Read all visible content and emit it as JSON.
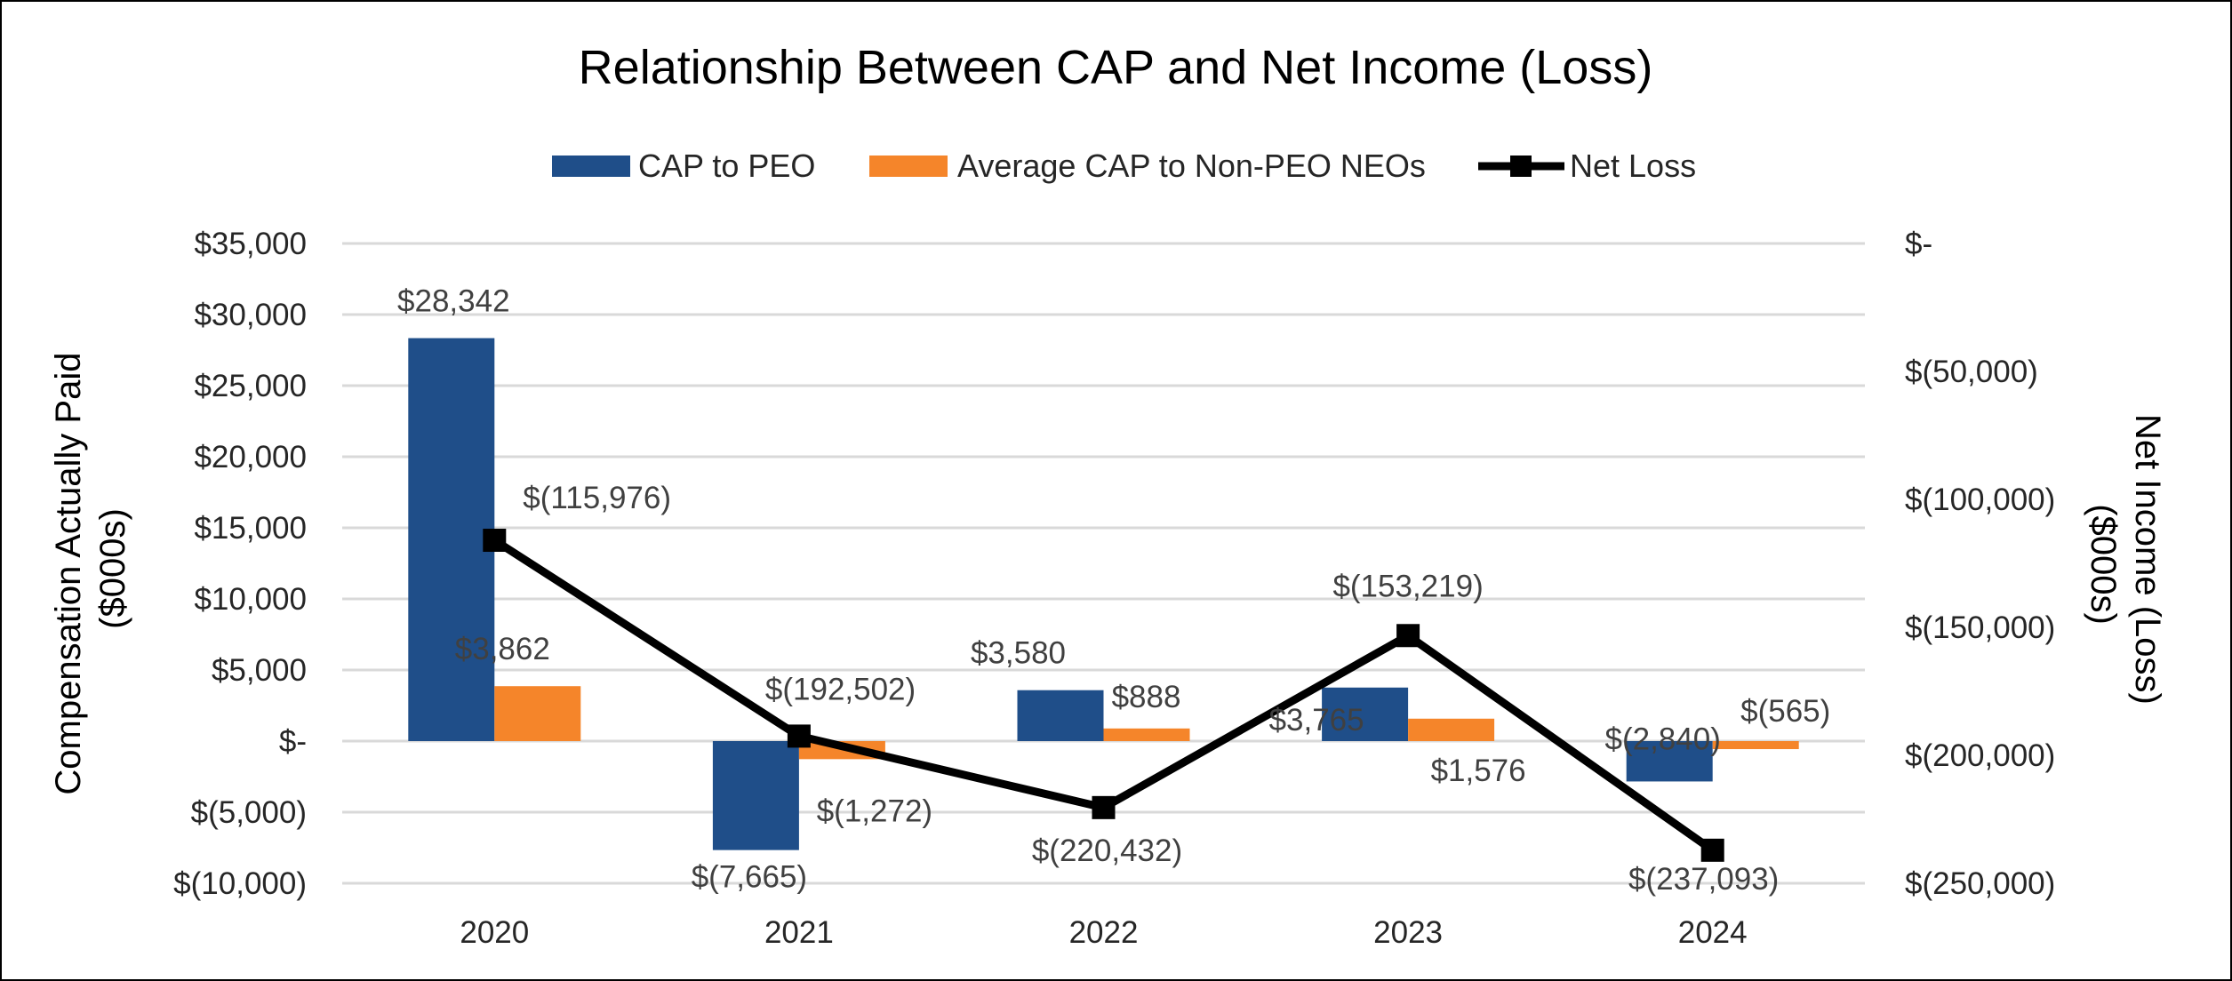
{
  "chart_data": {
    "type": "bar",
    "title": "Relationship Between CAP and Net Income (Loss)",
    "categories": [
      "2020",
      "2021",
      "2022",
      "2023",
      "2024"
    ],
    "ylabel_left": [
      "Compensation Actually Paid",
      "($000s)"
    ],
    "ylabel_right": [
      "Net Income (Loss)",
      "($000s)"
    ],
    "ylim_left": [
      -10000,
      35000
    ],
    "ylim_right": [
      -250000,
      0
    ],
    "left_ticks": [
      {
        "value": 35000,
        "label": "$35,000"
      },
      {
        "value": 30000,
        "label": "$30,000"
      },
      {
        "value": 25000,
        "label": "$25,000"
      },
      {
        "value": 20000,
        "label": "$20,000"
      },
      {
        "value": 15000,
        "label": "$15,000"
      },
      {
        "value": 10000,
        "label": "$10,000"
      },
      {
        "value": 5000,
        "label": "$5,000"
      },
      {
        "value": 0,
        "label": "$-"
      },
      {
        "value": -5000,
        "label": "$(5,000)"
      },
      {
        "value": -10000,
        "label": "$(10,000)"
      }
    ],
    "right_ticks": [
      {
        "value": 0,
        "label": "$-"
      },
      {
        "value": -50000,
        "label": "$(50,000)"
      },
      {
        "value": -100000,
        "label": "$(100,000)"
      },
      {
        "value": -150000,
        "label": "$(150,000)"
      },
      {
        "value": -200000,
        "label": "$(200,000)"
      },
      {
        "value": -250000,
        "label": "$(250,000)"
      }
    ],
    "grid": true,
    "legend_position": "top-center",
    "series": [
      {
        "name": "CAP to PEO",
        "kind": "bar",
        "axis": "left",
        "color": "#1f4e89",
        "values": [
          28342,
          -7665,
          3580,
          3765,
          -2840
        ],
        "labels": [
          "$28,342",
          "$(7,665)",
          "$3,580",
          "$3,765",
          "$(2,840)"
        ]
      },
      {
        "name": "Average CAP to Non-PEO NEOs",
        "kind": "bar",
        "axis": "left",
        "color": "#f5852a",
        "values": [
          3862,
          -1272,
          888,
          1576,
          -565
        ],
        "labels": [
          "$3,862",
          "$(1,272)",
          "$888",
          "$1,576",
          "$(565)"
        ]
      },
      {
        "name": "Net Loss",
        "kind": "line",
        "axis": "right",
        "color": "#000000",
        "values": [
          -115976,
          -192502,
          -220432,
          -153219,
          -237093
        ],
        "labels": [
          "$(115,976)",
          "$(192,502)",
          "$(220,432)",
          "$(153,219)",
          "$(237,093)"
        ]
      }
    ]
  }
}
